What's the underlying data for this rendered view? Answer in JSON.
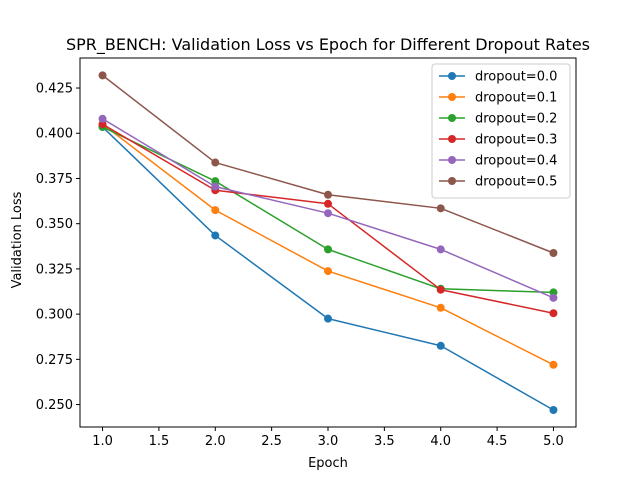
{
  "chart_data": {
    "type": "line",
    "title": "SPR_BENCH: Validation Loss vs Epoch for Different Dropout Rates",
    "xlabel": "Epoch",
    "ylabel": "Validation Loss",
    "x": [
      1.0,
      2.0,
      3.0,
      4.0,
      5.0
    ],
    "xlim": [
      0.8,
      5.2
    ],
    "ylim": [
      0.2376,
      0.4416
    ],
    "xticks": [
      1.0,
      1.5,
      2.0,
      2.5,
      3.0,
      3.5,
      4.0,
      4.5,
      5.0
    ],
    "xtick_labels": [
      "1.0",
      "1.5",
      "2.0",
      "2.5",
      "3.0",
      "3.5",
      "4.0",
      "4.5",
      "5.0"
    ],
    "yticks": [
      0.25,
      0.275,
      0.3,
      0.325,
      0.35,
      0.375,
      0.4,
      0.425
    ],
    "ytick_labels": [
      "0.250",
      "0.275",
      "0.300",
      "0.325",
      "0.350",
      "0.375",
      "0.400",
      "0.425"
    ],
    "grid": false,
    "legend_position": "top-right",
    "series": [
      {
        "name": "dropout=0.0",
        "color": "#1f77b4",
        "values": [
          0.4035,
          0.3435,
          0.2975,
          0.2825,
          0.247
        ]
      },
      {
        "name": "dropout=0.1",
        "color": "#ff7f0e",
        "values": [
          0.405,
          0.3575,
          0.3238,
          0.3035,
          0.272
        ]
      },
      {
        "name": "dropout=0.2",
        "color": "#2ca02c",
        "values": [
          0.4035,
          0.3735,
          0.3358,
          0.314,
          0.312
        ]
      },
      {
        "name": "dropout=0.3",
        "color": "#d62728",
        "values": [
          0.405,
          0.3685,
          0.361,
          0.3135,
          0.3005
        ]
      },
      {
        "name": "dropout=0.4",
        "color": "#9467bd",
        "values": [
          0.408,
          0.3705,
          0.3558,
          0.3358,
          0.309
        ]
      },
      {
        "name": "dropout=0.5",
        "color": "#8c564b",
        "values": [
          0.432,
          0.3838,
          0.366,
          0.3585,
          0.3338
        ]
      }
    ]
  }
}
